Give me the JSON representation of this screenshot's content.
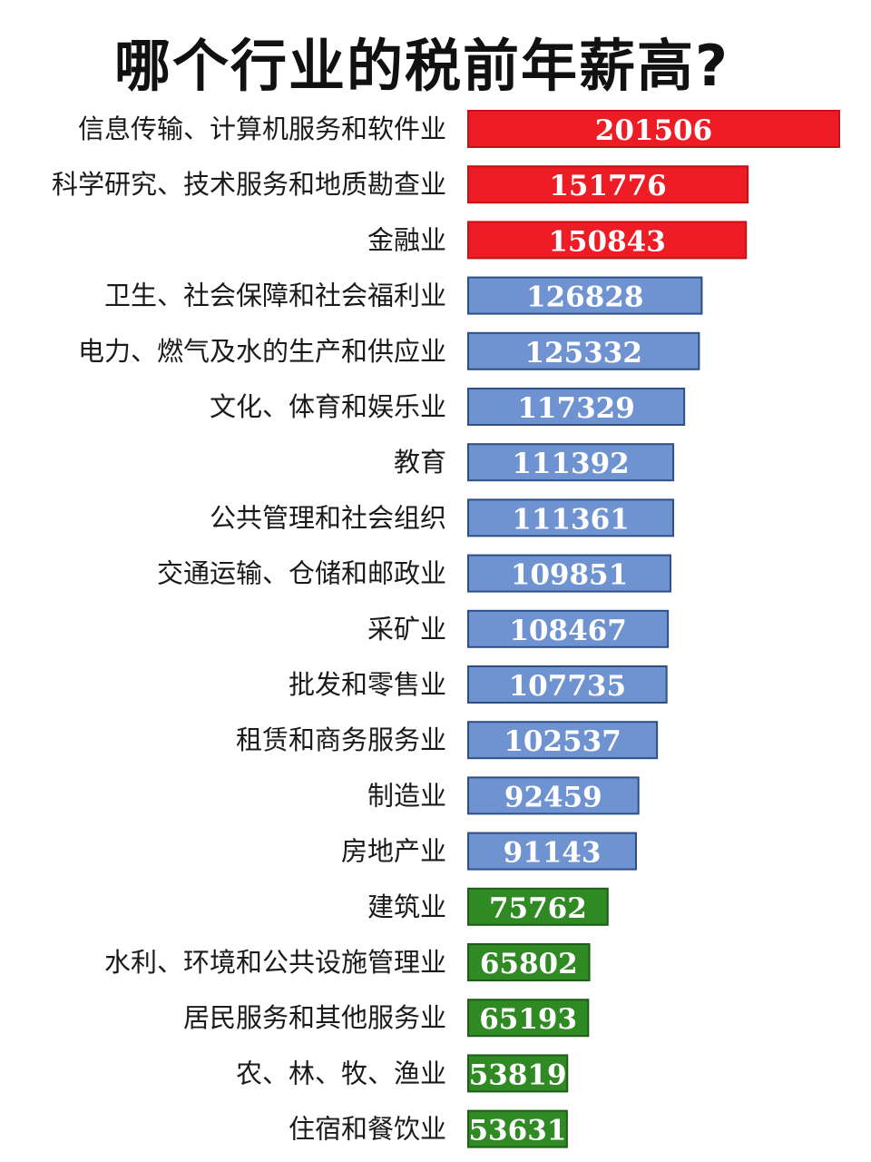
{
  "title": "哪个行业的税前年薪高?",
  "colors": {
    "top": "#ee1c25",
    "mid": "#6f93d1",
    "low": "#2f8a24"
  },
  "chart_data": {
    "type": "bar",
    "orientation": "horizontal",
    "title": "哪个行业的税前年薪高?",
    "xlabel": "",
    "ylabel": "",
    "grid": false,
    "legend": "none",
    "categories": [
      "信息传输、计算机服务和软件业",
      "科学研究、技术服务和地质勘查业",
      "金融业",
      "卫生、社会保障和社会福利业",
      "电力、燃气及水的生产和供应业",
      "文化、体育和娱乐业",
      "教育",
      "公共管理和社会组织",
      "交通运输、仓储和邮政业",
      "采矿业",
      "批发和零售业",
      "租赁和商务服务业",
      "制造业",
      "房地产业",
      "建筑业",
      "水利、环境和公共设施管理业",
      "居民服务和其他服务业",
      "农、林、牧、渔业",
      "住宿和餐饮业"
    ],
    "values": [
      201506,
      151776,
      150843,
      126828,
      125332,
      117329,
      111392,
      111361,
      109851,
      108467,
      107735,
      102537,
      92459,
      91143,
      75762,
      65802,
      65193,
      53819,
      53631
    ],
    "value_labels": [
      "201506",
      "151776",
      "150843",
      "126828",
      "125332",
      "117329",
      "111392",
      "111361",
      "109851",
      "108467",
      "107735",
      "102537",
      "92459",
      "91143",
      "75762",
      "65802",
      "65193",
      "53819",
      "53631"
    ],
    "bar_colors": [
      "top",
      "top",
      "top",
      "mid",
      "mid",
      "mid",
      "mid",
      "mid",
      "mid",
      "mid",
      "mid",
      "mid",
      "mid",
      "mid",
      "low",
      "low",
      "low",
      "low",
      "low"
    ]
  }
}
